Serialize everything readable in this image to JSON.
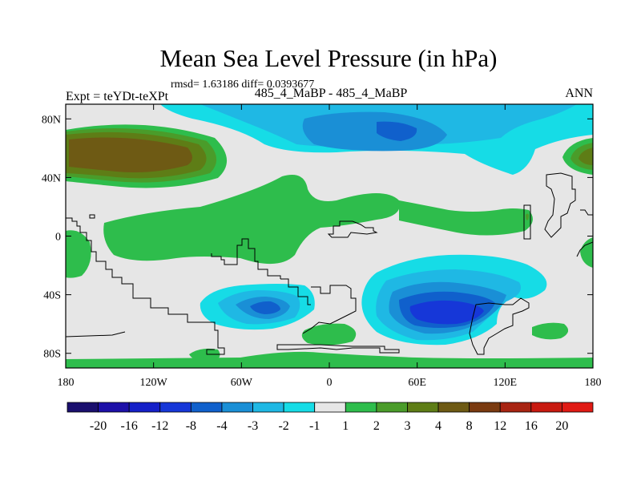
{
  "chart_data": {
    "type": "heatmap",
    "title": "Mean Sea Level Pressure (in hPa)",
    "stats_line": "rmsd= 1.63186 diff= 0.0393677",
    "experiment_label": "Expt = teYDt-teXPt",
    "subtitle": "485_4_MaBP - 485_4_MaBP",
    "season": "ANN",
    "x_ticks": [
      "180",
      "120W",
      "60W",
      "0",
      "60E",
      "120E",
      "180"
    ],
    "x_tick_values": [
      -180,
      -120,
      -60,
      0,
      60,
      120,
      180
    ],
    "y_ticks": [
      "80N",
      "40N",
      "0",
      "40S",
      "80S"
    ],
    "y_tick_values": [
      80,
      40,
      0,
      -40,
      -80
    ],
    "xlim": [
      -180,
      180
    ],
    "ylim": [
      -90,
      90
    ],
    "colorbar": {
      "labels": [
        "-20",
        "-16",
        "-12",
        "-8",
        "-4",
        "-3",
        "-2",
        "-1",
        "1",
        "2",
        "3",
        "4",
        "8",
        "12",
        "16",
        "20"
      ],
      "colors": [
        "#1a0f6e",
        "#1d10a8",
        "#1520c8",
        "#1637d8",
        "#1060cc",
        "#1a8fd6",
        "#1fb8e4",
        "#16dce6",
        "#e6e6e6",
        "#2ebd4c",
        "#4a9c2a",
        "#5e7d16",
        "#6e5a14",
        "#7a3a10",
        "#a82412",
        "#c81a10",
        "#e01a14"
      ]
    },
    "background_color": "#e6e6e6"
  }
}
